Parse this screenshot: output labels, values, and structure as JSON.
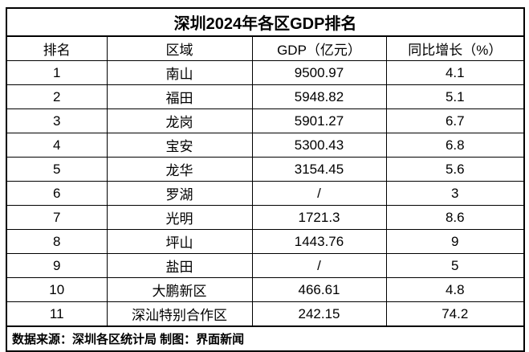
{
  "title": "深圳2024年各区GDP排名",
  "columns": [
    "排名",
    "区域",
    "GDP（亿元）",
    "同比增长（%）"
  ],
  "footer": "数据来源：深圳各区统计局  制图：界面新闻",
  "colors": {
    "border": "#000000",
    "text": "#000000",
    "background": "#ffffff"
  },
  "chart_data": {
    "type": "table",
    "title": "深圳2024年各区GDP排名",
    "columns": [
      "排名",
      "区域",
      "GDP（亿元）",
      "同比增长（%）"
    ],
    "rows": [
      [
        "1",
        "南山",
        "9500.97",
        "4.1"
      ],
      [
        "2",
        "福田",
        "5948.82",
        "5.1"
      ],
      [
        "3",
        "龙岗",
        "5901.27",
        "6.7"
      ],
      [
        "4",
        "宝安",
        "5300.43",
        "6.8"
      ],
      [
        "5",
        "龙华",
        "3154.45",
        "5.6"
      ],
      [
        "6",
        "罗湖",
        "/",
        "3"
      ],
      [
        "7",
        "光明",
        "1721.3",
        "8.6"
      ],
      [
        "8",
        "坪山",
        "1443.76",
        "9"
      ],
      [
        "9",
        "盐田",
        "/",
        "5"
      ],
      [
        "10",
        "大鹏新区",
        "466.61",
        "4.8"
      ],
      [
        "11",
        "深汕特别合作区",
        "242.15",
        "74.2"
      ]
    ],
    "source_note": "数据来源：深圳各区统计局  制图：界面新闻"
  }
}
